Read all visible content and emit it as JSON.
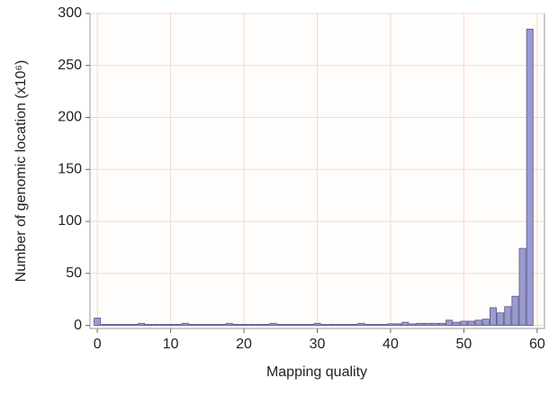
{
  "chart_data": {
    "type": "histogram",
    "x_label": "Mapping quality",
    "y_label": "Number of genomic location (x10⁶)",
    "bins": [
      -0.5,
      0.5,
      1.5,
      2.5,
      3.5,
      4.5,
      5.5,
      6.5,
      7.5,
      8.5,
      9.5,
      10.5,
      11.5,
      12.5,
      13.5,
      14.5,
      15.5,
      16.5,
      17.5,
      18.5,
      19.5,
      20.5,
      21.5,
      22.5,
      23.5,
      24.5,
      25.5,
      26.5,
      27.5,
      28.5,
      29.5,
      30.5,
      31.5,
      32.5,
      33.5,
      34.5,
      35.5,
      36.5,
      37.5,
      38.5,
      39.5,
      40.5,
      41.5,
      42.5,
      43.5,
      44.5,
      45.5,
      46.5,
      47.5,
      48.5,
      49.5,
      50.5,
      51.5,
      52.5,
      53.5,
      54.5,
      55.5,
      56.5,
      57.5,
      58.5,
      59.5,
      60.5
    ],
    "values": [
      7,
      1,
      1,
      1,
      1,
      1,
      2,
      1,
      1,
      1,
      1,
      1,
      2,
      1,
      1,
      1,
      1,
      1,
      2,
      1,
      1,
      1,
      1,
      1,
      2,
      1,
      1,
      1,
      1,
      1,
      2,
      1,
      1,
      1,
      1,
      1,
      2,
      1,
      1,
      1,
      1.5,
      1.5,
      3,
      1.5,
      2,
      2,
      2,
      2,
      5,
      3,
      4,
      4,
      5,
      6,
      17,
      12,
      18,
      28,
      74,
      285,
      0
    ],
    "color": "#9b9bcf",
    "edge_color": "#55558a",
    "xlim": [
      -1,
      61
    ],
    "xticks": [
      0,
      10,
      20,
      30,
      40,
      50,
      60
    ],
    "ylim": [
      -3,
      300
    ],
    "yticks": [
      0,
      50,
      100,
      150,
      200,
      250,
      300
    ],
    "grid": true
  }
}
